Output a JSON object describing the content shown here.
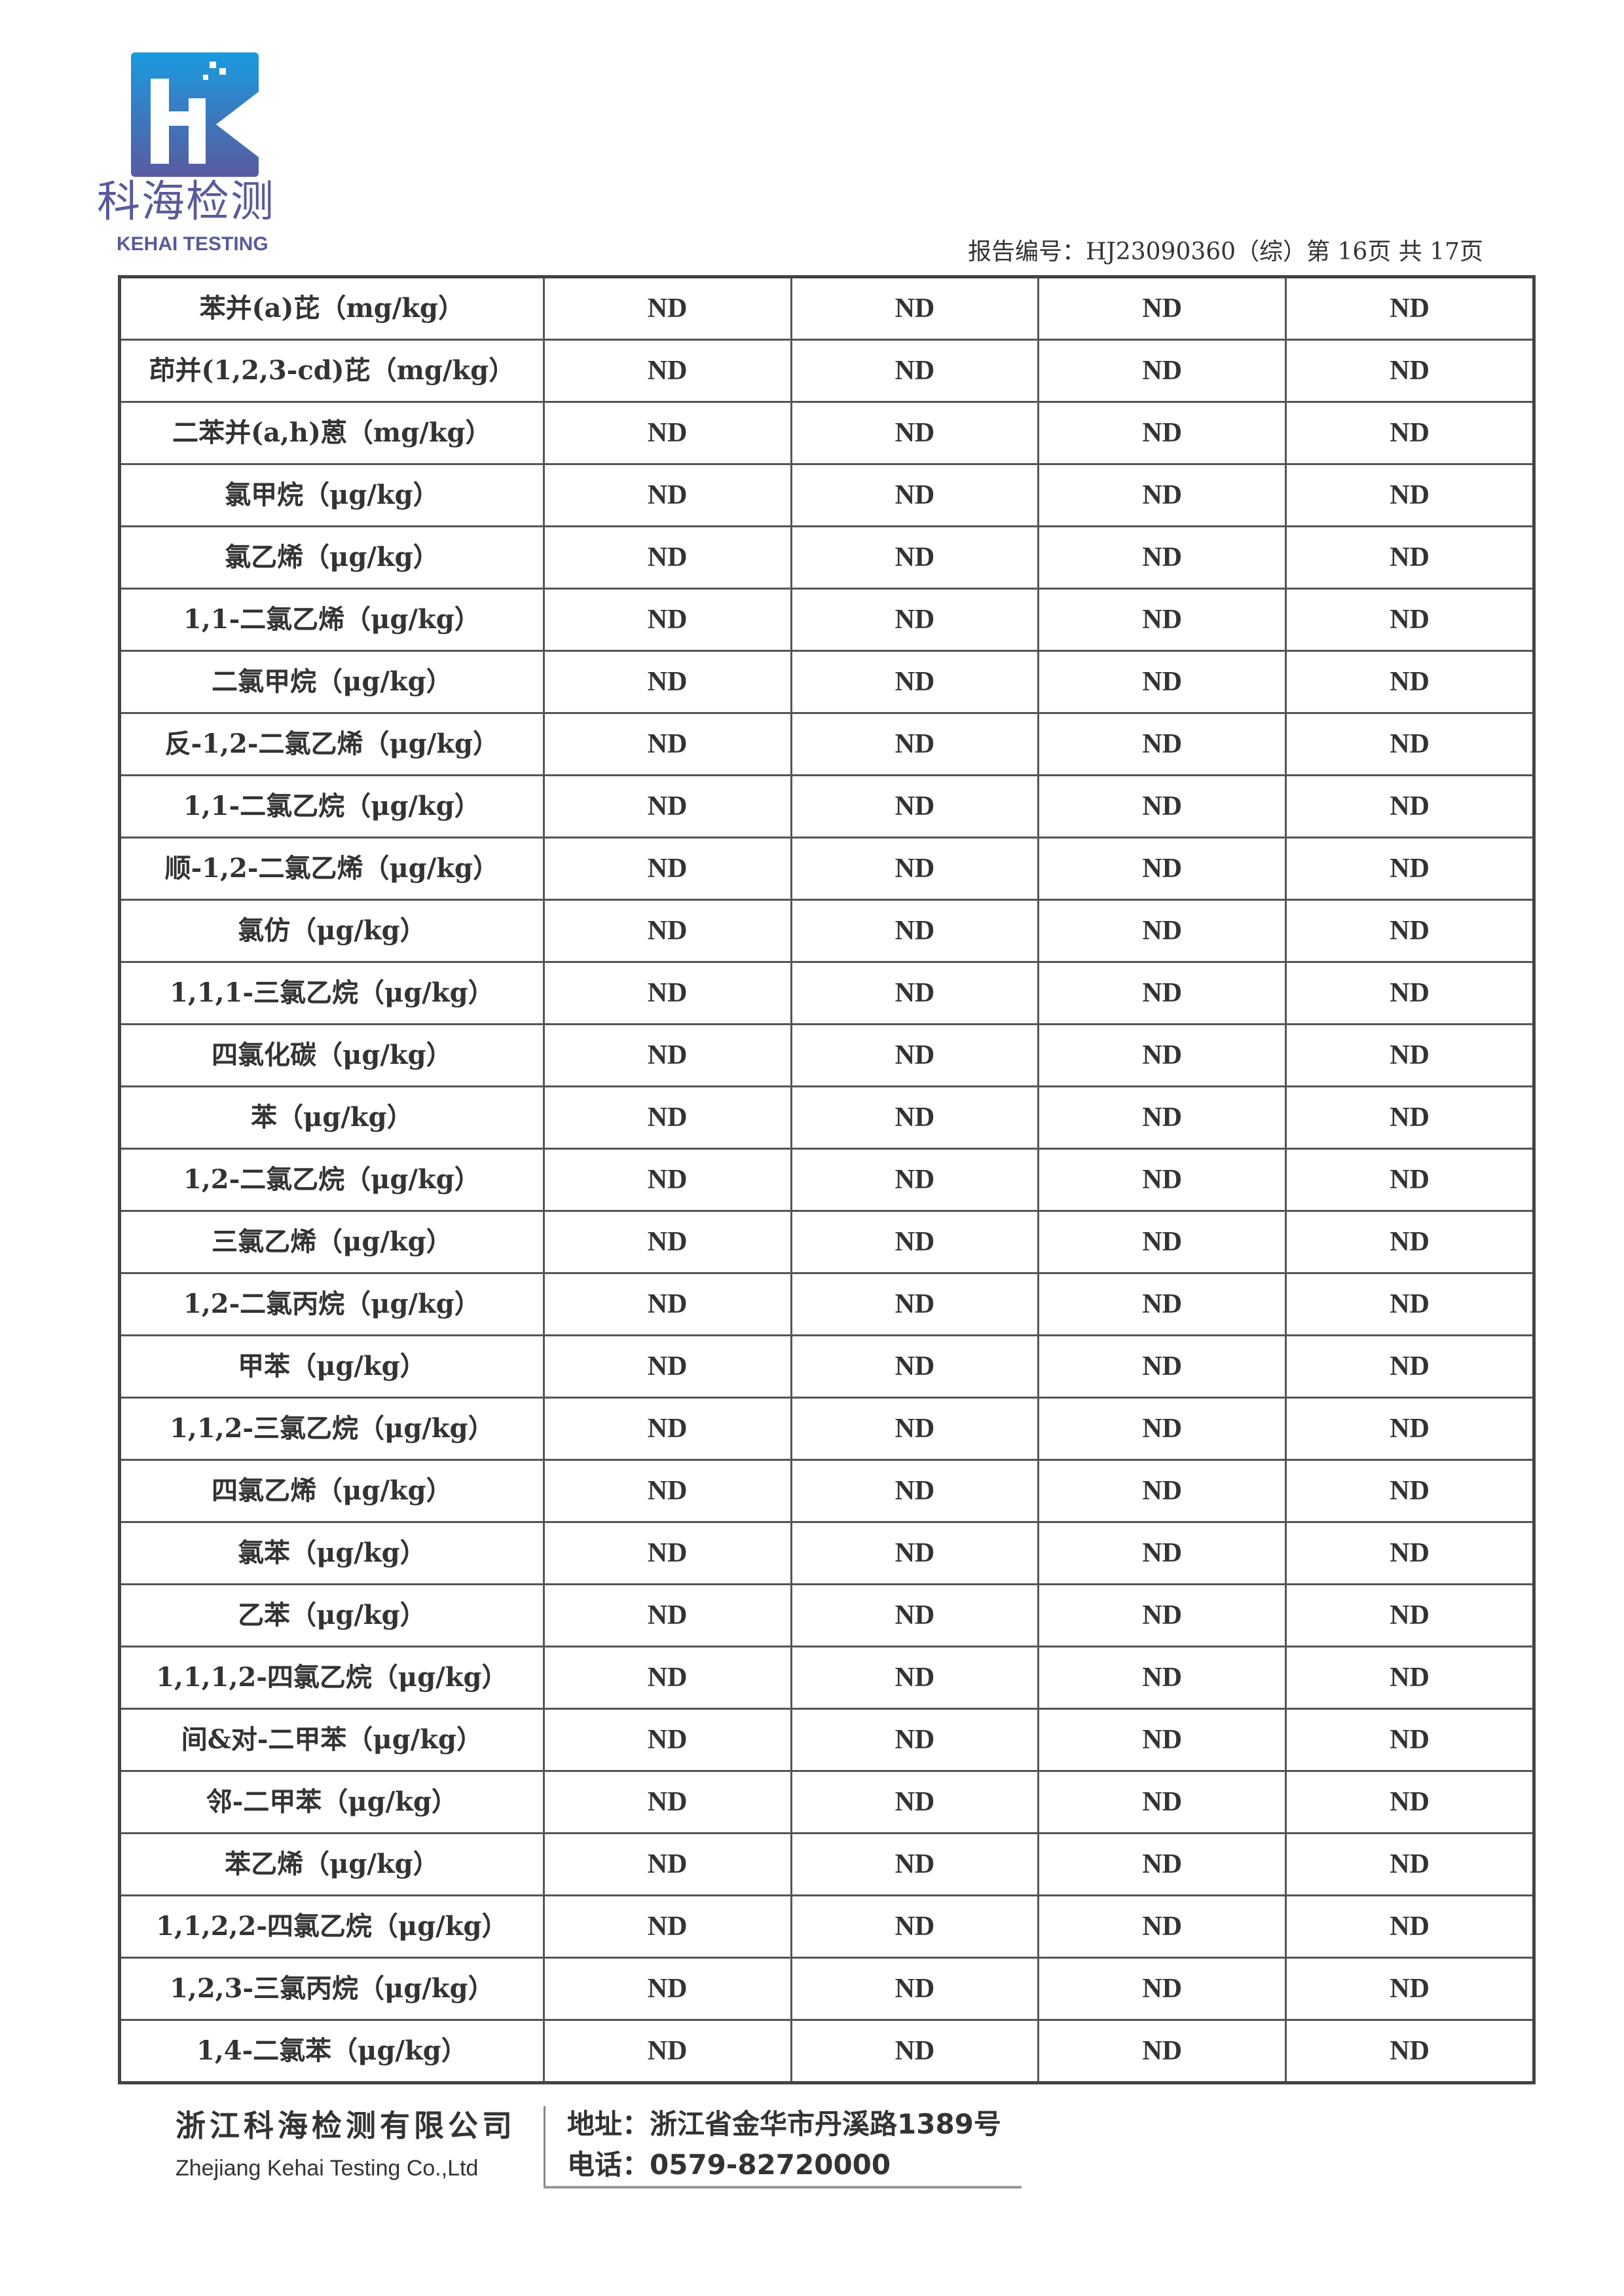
{
  "logo": {
    "cn": "科海检测",
    "en": "KEHAI TESTING",
    "colors": {
      "top": "#1a9be0",
      "bottom": "#5a5aa0"
    }
  },
  "header": {
    "report_no": "报告编号：HJ23090360（综）第 16页  共 17页"
  },
  "table": {
    "rows": [
      {
        "name": "苯并(a)芘（mg/kg）",
        "values": [
          "ND",
          "ND",
          "ND",
          "ND"
        ]
      },
      {
        "name": "茚并(1,2,3-cd)芘（mg/kg）",
        "values": [
          "ND",
          "ND",
          "ND",
          "ND"
        ]
      },
      {
        "name": "二苯并(a,h)蒽（mg/kg）",
        "values": [
          "ND",
          "ND",
          "ND",
          "ND"
        ]
      },
      {
        "name": "氯甲烷（μg/kg）",
        "values": [
          "ND",
          "ND",
          "ND",
          "ND"
        ]
      },
      {
        "name": "氯乙烯（μg/kg）",
        "values": [
          "ND",
          "ND",
          "ND",
          "ND"
        ]
      },
      {
        "name": "1,1-二氯乙烯（μg/kg）",
        "values": [
          "ND",
          "ND",
          "ND",
          "ND"
        ]
      },
      {
        "name": "二氯甲烷（μg/kg）",
        "values": [
          "ND",
          "ND",
          "ND",
          "ND"
        ]
      },
      {
        "name": "反-1,2-二氯乙烯（μg/kg）",
        "values": [
          "ND",
          "ND",
          "ND",
          "ND"
        ]
      },
      {
        "name": "1,1-二氯乙烷（μg/kg）",
        "values": [
          "ND",
          "ND",
          "ND",
          "ND"
        ]
      },
      {
        "name": "顺-1,2-二氯乙烯（μg/kg）",
        "values": [
          "ND",
          "ND",
          "ND",
          "ND"
        ]
      },
      {
        "name": "氯仿（μg/kg）",
        "values": [
          "ND",
          "ND",
          "ND",
          "ND"
        ]
      },
      {
        "name": "1,1,1-三氯乙烷（μg/kg）",
        "values": [
          "ND",
          "ND",
          "ND",
          "ND"
        ]
      },
      {
        "name": "四氯化碳（μg/kg）",
        "values": [
          "ND",
          "ND",
          "ND",
          "ND"
        ]
      },
      {
        "name": "苯（μg/kg）",
        "values": [
          "ND",
          "ND",
          "ND",
          "ND"
        ]
      },
      {
        "name": "1,2-二氯乙烷（μg/kg）",
        "values": [
          "ND",
          "ND",
          "ND",
          "ND"
        ]
      },
      {
        "name": "三氯乙烯（μg/kg）",
        "values": [
          "ND",
          "ND",
          "ND",
          "ND"
        ]
      },
      {
        "name": "1,2-二氯丙烷（μg/kg）",
        "values": [
          "ND",
          "ND",
          "ND",
          "ND"
        ]
      },
      {
        "name": "甲苯（μg/kg）",
        "values": [
          "ND",
          "ND",
          "ND",
          "ND"
        ]
      },
      {
        "name": "1,1,2-三氯乙烷（μg/kg）",
        "values": [
          "ND",
          "ND",
          "ND",
          "ND"
        ]
      },
      {
        "name": "四氯乙烯（μg/kg）",
        "values": [
          "ND",
          "ND",
          "ND",
          "ND"
        ]
      },
      {
        "name": "氯苯（μg/kg）",
        "values": [
          "ND",
          "ND",
          "ND",
          "ND"
        ]
      },
      {
        "name": "乙苯（μg/kg）",
        "values": [
          "ND",
          "ND",
          "ND",
          "ND"
        ]
      },
      {
        "name": "1,1,1,2-四氯乙烷（μg/kg）",
        "values": [
          "ND",
          "ND",
          "ND",
          "ND"
        ]
      },
      {
        "name": "间&对-二甲苯（μg/kg）",
        "values": [
          "ND",
          "ND",
          "ND",
          "ND"
        ]
      },
      {
        "name": "邻-二甲苯（μg/kg）",
        "values": [
          "ND",
          "ND",
          "ND",
          "ND"
        ]
      },
      {
        "name": "苯乙烯（μg/kg）",
        "values": [
          "ND",
          "ND",
          "ND",
          "ND"
        ]
      },
      {
        "name": "1,1,2,2-四氯乙烷（μg/kg）",
        "values": [
          "ND",
          "ND",
          "ND",
          "ND"
        ]
      },
      {
        "name": "1,2,3-三氯丙烷（μg/kg）",
        "values": [
          "ND",
          "ND",
          "ND",
          "ND"
        ]
      },
      {
        "name": "1,4-二氯苯（μg/kg）",
        "values": [
          "ND",
          "ND",
          "ND",
          "ND"
        ]
      }
    ]
  },
  "footer": {
    "company_cn": "浙江科海检测有限公司",
    "company_en": "Zhejiang Kehai Testing Co.,Ltd",
    "address": "地址：浙江省金华市丹溪路1389号",
    "phone": "电话：0579-82720000"
  }
}
